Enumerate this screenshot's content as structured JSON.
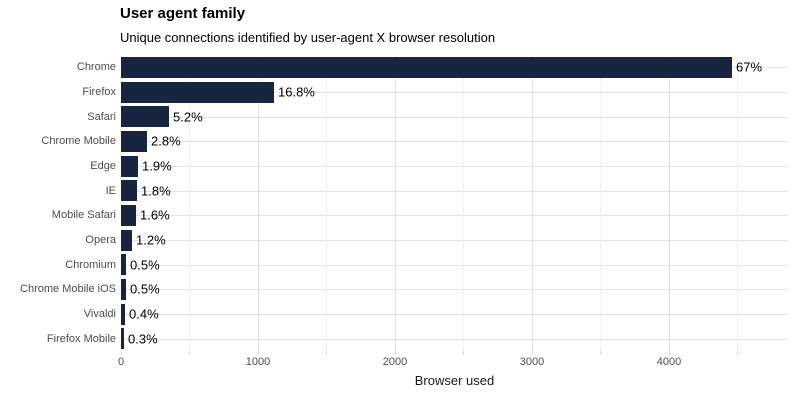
{
  "chart_data": {
    "type": "bar",
    "orientation": "horizontal",
    "title": "User agent family",
    "subtitle": "Unique connections identified by user-agent X browser resolution",
    "xlabel": "Browser used",
    "ylabel": "",
    "categories": [
      "Chrome",
      "Firefox",
      "Safari",
      "Chrome Mobile",
      "Edge",
      "IE",
      "Mobile Safari",
      "Opera",
      "Chromium",
      "Chrome Mobile iOS",
      "Vivaldi",
      "Firefox Mobile"
    ],
    "values": [
      4460,
      1120,
      347,
      187,
      127,
      120,
      107,
      80,
      33,
      33,
      27,
      20
    ],
    "bar_labels": [
      "67%",
      "16.8%",
      "5.2%",
      "2.8%",
      "1.9%",
      "1.8%",
      "1.6%",
      "1.2%",
      "0.5%",
      "0.5%",
      "0.4%",
      "0.3%"
    ],
    "xlim": [
      0,
      4870
    ],
    "xticks": [
      0,
      1000,
      2000,
      3000,
      4000
    ],
    "minor_grid_step": 500,
    "grid": true,
    "legend": false,
    "colors": {
      "bar": "#17263e",
      "grid_major": "#e3e3e3",
      "grid_minor": "#f0f0f0",
      "tick_mark": "#d6d6d6",
      "category_label": "#4d4d4d",
      "tick_label": "#4d4d4d",
      "value_label": "#000000",
      "axis_title": "#1a1a1a",
      "background": "#ffffff"
    }
  }
}
